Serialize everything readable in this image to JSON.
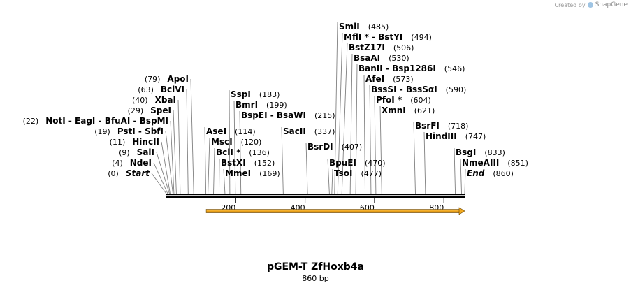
{
  "app": {
    "watermark_prefix": "Created by",
    "watermark_brand": "SnapGene"
  },
  "map": {
    "title": "pGEM-T ZfHoxb4a",
    "length_label": "860 bp",
    "length_bp": 860,
    "scale_ticks": [
      {
        "bp": 200,
        "label": "200"
      },
      {
        "bp": 400,
        "label": "400"
      },
      {
        "bp": 600,
        "label": "600"
      },
      {
        "bp": 800,
        "label": "800"
      }
    ],
    "feature": {
      "start_bp": 115,
      "end_bp": 860,
      "color": "#f2a91e",
      "direction": "forward"
    }
  },
  "labels": [
    {
      "text": "Start",
      "pos": "(0)",
      "bp": 0,
      "marker": true,
      "side": "left"
    },
    {
      "text": "NdeI",
      "pos": "(4)",
      "bp": 4,
      "side": "left"
    },
    {
      "text": "SalI",
      "pos": "(9)",
      "bp": 9,
      "side": "left"
    },
    {
      "text": "HincII",
      "pos": "(11)",
      "bp": 11,
      "side": "left"
    },
    {
      "text": "PstI  -  SbfI",
      "pos": "(19)",
      "bp": 19,
      "side": "left"
    },
    {
      "text": "NotI  -  EagI  -  BfuAI  -  BspMI",
      "pos": "(22)",
      "bp": 22,
      "side": "left"
    },
    {
      "text": "SpeI",
      "pos": "(29)",
      "bp": 29,
      "side": "left"
    },
    {
      "text": "XbaI",
      "pos": "(40)",
      "bp": 40,
      "side": "left"
    },
    {
      "text": "BciVI",
      "pos": "(63)",
      "bp": 63,
      "side": "left"
    },
    {
      "text": "ApoI",
      "pos": "(79)",
      "bp": 79,
      "side": "left"
    },
    {
      "text": "AseI",
      "pos": "(114)",
      "bp": 114,
      "side": "right"
    },
    {
      "text": "MscI",
      "pos": "(120)",
      "bp": 120,
      "side": "right"
    },
    {
      "text": "BclI *",
      "pos": "(136)",
      "bp": 136,
      "side": "right"
    },
    {
      "text": "BstXI",
      "pos": "(152)",
      "bp": 152,
      "side": "right"
    },
    {
      "text": "MmeI",
      "pos": "(169)",
      "bp": 169,
      "side": "right"
    },
    {
      "text": "SspI",
      "pos": "(183)",
      "bp": 183,
      "side": "right"
    },
    {
      "text": "BmrI",
      "pos": "(199)",
      "bp": 199,
      "side": "right"
    },
    {
      "text": "BspEI  -  BsaWI",
      "pos": "(215)",
      "bp": 215,
      "side": "right"
    },
    {
      "text": "SacII",
      "pos": "(337)",
      "bp": 337,
      "side": "right"
    },
    {
      "text": "BsrDI",
      "pos": "(407)",
      "bp": 407,
      "side": "right"
    },
    {
      "text": "BpuEI",
      "pos": "(470)",
      "bp": 470,
      "side": "right"
    },
    {
      "text": "TsoI",
      "pos": "(477)",
      "bp": 477,
      "side": "right"
    },
    {
      "text": "SmlI",
      "pos": "(485)",
      "bp": 485,
      "side": "right"
    },
    {
      "text": "MflI *  -  BstYI",
      "pos": "(494)",
      "bp": 494,
      "side": "right"
    },
    {
      "text": "BstZ17I",
      "pos": "(506)",
      "bp": 506,
      "side": "right"
    },
    {
      "text": "BsaAI",
      "pos": "(530)",
      "bp": 530,
      "side": "right"
    },
    {
      "text": "BanII  -  Bsp1286I",
      "pos": "(546)",
      "bp": 546,
      "side": "right"
    },
    {
      "text": "AfeI",
      "pos": "(573)",
      "bp": 573,
      "side": "right"
    },
    {
      "text": "BssSI  -  BssSαI",
      "pos": "(590)",
      "bp": 590,
      "side": "right"
    },
    {
      "text": "PfoI *",
      "pos": "(604)",
      "bp": 604,
      "side": "right"
    },
    {
      "text": "XmnI",
      "pos": "(621)",
      "bp": 621,
      "side": "right"
    },
    {
      "text": "BsrFI",
      "pos": "(718)",
      "bp": 718,
      "side": "right"
    },
    {
      "text": "HindIII",
      "pos": "(747)",
      "bp": 747,
      "side": "right"
    },
    {
      "text": "BsgI",
      "pos": "(833)",
      "bp": 833,
      "side": "right"
    },
    {
      "text": "NmeAIII",
      "pos": "(851)",
      "bp": 851,
      "side": "right"
    },
    {
      "text": "End",
      "pos": "(860)",
      "bp": 860,
      "marker": true,
      "side": "right"
    }
  ]
}
